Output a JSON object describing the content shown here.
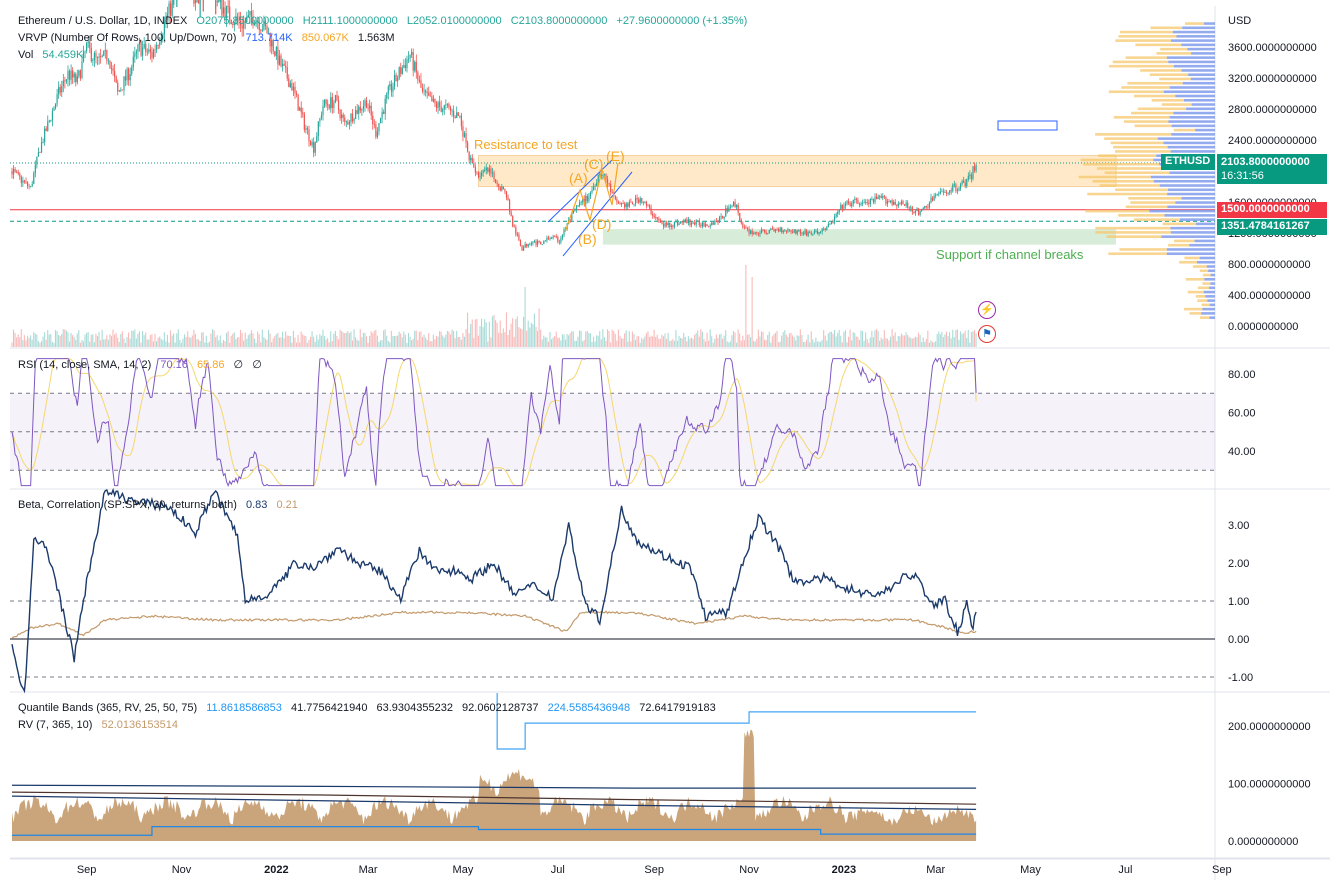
{
  "legend": {
    "title": "Ethereum / U.S. Dollar, 1D, INDEX",
    "o": "O2075.8500000000",
    "h": "H2111.1000000000",
    "l": "L2052.0100000000",
    "c": "C2103.8000000000",
    "chg": "+27.9600000000 (+1.35%)",
    "vrvp": "VRVP (Number Of Rows, 100, Up/Down, 70)",
    "vrvp_v1": "713.714K",
    "vrvp_v2": "850.067K",
    "vrvp_v3": "1.563M",
    "vol": "Vol",
    "vol_v": "54.459K",
    "rsi": "RSI (14, close, SMA, 14, 2)",
    "rsi_v1": "70.16",
    "rsi_v2": "65.86",
    "rsi_v3": "∅",
    "rsi_v4": "∅",
    "beta": "Beta, Correlation (SP:SPX, 30, returns, both)",
    "beta_v1": "0.83",
    "beta_v2": "0.21",
    "qb": "Quantile Bands (365, RV, 25, 50, 75)",
    "qb_v1": "11.8618586853",
    "qb_v2": "41.7756421940",
    "qb_v3": "63.9304355232",
    "qb_v4": "92.0602128737",
    "qb_v5": "224.5585436948",
    "qb_v6": "72.6417919183",
    "rv": "RV (7, 365, 10)",
    "rv_v": "52.0136153514"
  },
  "annotations": {
    "resistance": "Resistance to test",
    "support": "Support if channel breaks",
    "wave_a": "(A)",
    "wave_b": "(B)",
    "wave_c": "(C)",
    "wave_d": "(D)",
    "wave_e": "(E)"
  },
  "price_labels": {
    "symbol": "ETHUSD",
    "last": "2103.8000000000",
    "countdown": "16:31:56",
    "level1": "1500.0000000000",
    "level2": "1351.4784161267"
  },
  "axes": {
    "currency": "USD",
    "price_ticks": [
      {
        "v": 3600,
        "label": "3600.0000000000"
      },
      {
        "v": 3200,
        "label": "3200.0000000000"
      },
      {
        "v": 2800,
        "label": "2800.0000000000"
      },
      {
        "v": 2400,
        "label": "2400.0000000000"
      },
      {
        "v": 2000,
        "label": "2000.0000000000"
      },
      {
        "v": 1600,
        "label": "1600.0000000000"
      },
      {
        "v": 1200,
        "label": "1200.0000000000"
      },
      {
        "v": 800,
        "label": "800.0000000000"
      },
      {
        "v": 400,
        "label": "400.0000000000"
      },
      {
        "v": 0,
        "label": "0.0000000000"
      }
    ],
    "rsi_ticks": [
      {
        "v": 80,
        "label": "80.00"
      },
      {
        "v": 60,
        "label": "60.00"
      },
      {
        "v": 40,
        "label": "40.00"
      }
    ],
    "beta_ticks": [
      {
        "v": 3,
        "label": "3.00"
      },
      {
        "v": 2,
        "label": "2.00"
      },
      {
        "v": 1,
        "label": "1.00"
      },
      {
        "v": 0,
        "label": "0.00"
      },
      {
        "v": -1,
        "label": "-1.00"
      }
    ],
    "rv_ticks": [
      {
        "v": 200,
        "label": "200.0000000000"
      },
      {
        "v": 100,
        "label": "100.0000000000"
      },
      {
        "v": 0,
        "label": "0.0000000000"
      }
    ],
    "time_ticks": [
      {
        "label": "Sep",
        "d": 48
      },
      {
        "label": "Nov",
        "d": 109
      },
      {
        "label": "2022",
        "d": 170
      },
      {
        "label": "Mar",
        "d": 229
      },
      {
        "label": "May",
        "d": 290
      },
      {
        "label": "Jul",
        "d": 351
      },
      {
        "label": "Sep",
        "d": 413
      },
      {
        "label": "Nov",
        "d": 474
      },
      {
        "label": "2023",
        "d": 535
      },
      {
        "label": "Mar",
        "d": 594
      },
      {
        "label": "May",
        "d": 655
      },
      {
        "label": "Jul",
        "d": 716
      },
      {
        "label": "Sep",
        "d": 778
      }
    ]
  },
  "chart_data": [
    {
      "type": "candlestick",
      "title": "Ethereum / U.S. Dollar, 1D, INDEX",
      "x_unit": "days since 2021-07-15 (approx.)",
      "ylim": [
        -150,
        4300
      ],
      "last_price": 2103.8,
      "levels": [
        1500,
        1351.48
      ],
      "zones": [
        {
          "name": "Resistance to test",
          "d0": 300,
          "d1": 710,
          "y0": 1800,
          "y1": 2200,
          "color": "#ffe0b2"
        },
        {
          "name": "Support if channel breaks",
          "d0": 380,
          "d1": 710,
          "y0": 1050,
          "y1": 1250,
          "color": "#c8e6c9"
        }
      ],
      "price_path": [
        [
          0,
          2000
        ],
        [
          6,
          1880
        ],
        [
          12,
          1780
        ],
        [
          18,
          2300
        ],
        [
          24,
          2650
        ],
        [
          30,
          3000
        ],
        [
          36,
          3250
        ],
        [
          42,
          3150
        ],
        [
          48,
          3600
        ],
        [
          55,
          3400
        ],
        [
          62,
          3500
        ],
        [
          68,
          3000
        ],
        [
          76,
          3300
        ],
        [
          82,
          3600
        ],
        [
          90,
          3500
        ],
        [
          98,
          3900
        ],
        [
          106,
          4300
        ],
        [
          112,
          4500
        ],
        [
          118,
          4200
        ],
        [
          126,
          4600
        ],
        [
          132,
          4200
        ],
        [
          140,
          4000
        ],
        [
          148,
          3900
        ],
        [
          156,
          4000
        ],
        [
          164,
          3800
        ],
        [
          172,
          3400
        ],
        [
          180,
          3100
        ],
        [
          188,
          2600
        ],
        [
          194,
          2300
        ],
        [
          200,
          2850
        ],
        [
          208,
          2900
        ],
        [
          214,
          2600
        ],
        [
          220,
          2750
        ],
        [
          228,
          2900
        ],
        [
          234,
          2500
        ],
        [
          242,
          3000
        ],
        [
          250,
          3300
        ],
        [
          256,
          3500
        ],
        [
          264,
          3000
        ],
        [
          272,
          2850
        ],
        [
          280,
          2800
        ],
        [
          288,
          2700
        ],
        [
          294,
          2150
        ],
        [
          300,
          1950
        ],
        [
          306,
          2000
        ],
        [
          312,
          1850
        ],
        [
          318,
          1700
        ],
        [
          322,
          1300
        ],
        [
          328,
          1000
        ],
        [
          334,
          1100
        ],
        [
          340,
          1050
        ],
        [
          346,
          1150
        ],
        [
          352,
          1100
        ],
        [
          358,
          1350
        ],
        [
          364,
          1550
        ],
        [
          370,
          1650
        ],
        [
          374,
          1800
        ],
        [
          378,
          2000
        ],
        [
          382,
          1900
        ],
        [
          388,
          1600
        ],
        [
          396,
          1550
        ],
        [
          404,
          1650
        ],
        [
          410,
          1500
        ],
        [
          418,
          1300
        ],
        [
          426,
          1320
        ],
        [
          434,
          1350
        ],
        [
          440,
          1320
        ],
        [
          448,
          1320
        ],
        [
          456,
          1380
        ],
        [
          462,
          1580
        ],
        [
          466,
          1550
        ],
        [
          470,
          1250
        ],
        [
          478,
          1200
        ],
        [
          486,
          1220
        ],
        [
          494,
          1250
        ],
        [
          502,
          1230
        ],
        [
          510,
          1200
        ],
        [
          518,
          1200
        ],
        [
          526,
          1300
        ],
        [
          534,
          1550
        ],
        [
          542,
          1600
        ],
        [
          550,
          1580
        ],
        [
          558,
          1650
        ],
        [
          566,
          1600
        ],
        [
          574,
          1560
        ],
        [
          580,
          1500
        ],
        [
          584,
          1450
        ],
        [
          588,
          1550
        ],
        [
          594,
          1680
        ],
        [
          602,
          1750
        ],
        [
          610,
          1820
        ],
        [
          616,
          1900
        ],
        [
          620,
          2103.8
        ]
      ],
      "volume_max": 1200
    },
    {
      "type": "line",
      "title": "RSI (14, close, SMA, 14, 2)",
      "ylim": [
        20,
        90
      ],
      "bands": [
        30,
        50,
        70
      ],
      "series": [
        {
          "name": "RSI",
          "color": "#7e57c2",
          "values_at_end": 70.16
        },
        {
          "name": "SMA",
          "color": "#f5d76e",
          "values_at_end": 65.86
        }
      ]
    },
    {
      "type": "line",
      "title": "Beta, Correlation (SP:SPX, 30, returns, both)",
      "ylim": [
        -1.5,
        3.8
      ],
      "levels": [
        1,
        0,
        -1
      ],
      "series": [
        {
          "name": "Beta",
          "color": "#1b3a6b",
          "values_at_end": 0.83
        },
        {
          "name": "Correlation",
          "color": "#c49a6c",
          "values_at_end": 0.21
        }
      ]
    },
    {
      "type": "area",
      "title": "RV (7, 365, 10)",
      "ylim": [
        -10,
        240
      ],
      "series": [
        {
          "name": "RV",
          "color": "#c49a6c",
          "values_at_end": 52.01
        },
        {
          "name": "Q25",
          "color": "#1e88e5",
          "values_at_end": 11.86
        },
        {
          "name": "Q50",
          "color": "#4e342e",
          "values_at_end": 63.93
        },
        {
          "name": "Q75",
          "color": "#1b3a6b",
          "values_at_end": 72.64
        },
        {
          "name": "Max",
          "color": "#42a5f5",
          "values_at_end": 224.56
        }
      ]
    }
  ]
}
